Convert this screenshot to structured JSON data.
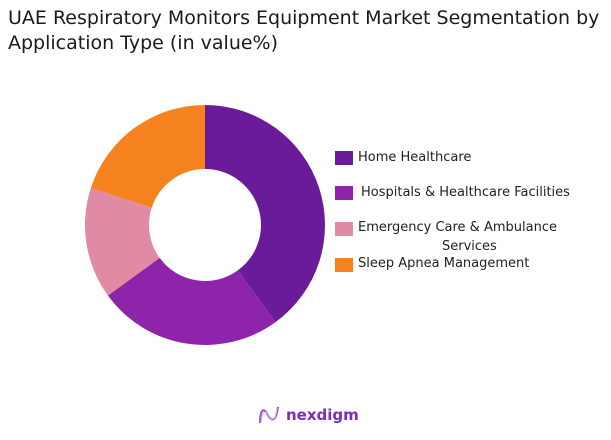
{
  "chart_data": {
    "type": "pie",
    "variant": "donut",
    "title": "UAE Respiratory Monitors Equipment Market Segmentation by Application Type (in value%)",
    "categories": [
      "Home Healthcare",
      "Hospitals & Healthcare Facilities",
      "Emergency Care & Ambulance Services",
      "Sleep Apnea Management"
    ],
    "values": [
      40,
      25,
      15,
      20
    ],
    "colors": [
      "#6a1b9a",
      "#8e24aa",
      "#e08aa4",
      "#f5821f"
    ],
    "legend_placement": "right"
  },
  "legend": {
    "items": [
      {
        "line1": "Home Healthcare",
        "line2": ""
      },
      {
        "line1": "Hospitals & Healthcare Facilities",
        "line2": ""
      },
      {
        "line1": "Emergency Care & Ambulance",
        "line2": "Services"
      },
      {
        "line1": "Sleep Apnea Management",
        "line2": ""
      }
    ]
  },
  "logo": {
    "text": "nexdigm"
  }
}
